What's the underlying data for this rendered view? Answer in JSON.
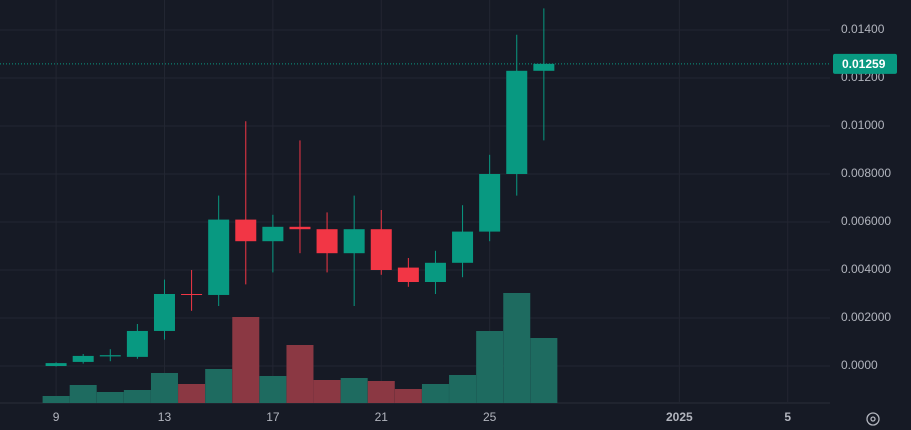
{
  "chart_data": {
    "type": "candlestick",
    "x": [
      9,
      10,
      11,
      12,
      13,
      14,
      15,
      16,
      17,
      18,
      19,
      20,
      21,
      22,
      23,
      24,
      25,
      26,
      27
    ],
    "open": [
      0.0,
      0.00017,
      0.0004,
      0.00038,
      0.00146,
      0.003,
      0.00296,
      0.0061,
      0.0052,
      0.0058,
      0.0057,
      0.0047,
      0.0057,
      0.0041,
      0.0035,
      0.0043,
      0.0056,
      0.008,
      0.0123
    ],
    "high": [
      0.00015,
      0.0005,
      0.0007,
      0.00175,
      0.0036,
      0.004,
      0.0071,
      0.0102,
      0.0063,
      0.0094,
      0.0064,
      0.0071,
      0.0065,
      0.0045,
      0.0048,
      0.0067,
      0.0088,
      0.0138,
      0.0149
    ],
    "low": [
      -2e-05,
      0.0001,
      0.0002,
      0.0003,
      0.0011,
      0.0023,
      0.0025,
      0.0034,
      0.0039,
      0.0047,
      0.0039,
      0.0025,
      0.0038,
      0.0033,
      0.003,
      0.0037,
      0.0052,
      0.0071,
      0.0094
    ],
    "close": [
      0.00012,
      0.00042,
      0.00045,
      0.00146,
      0.003,
      0.00298,
      0.0061,
      0.0052,
      0.0058,
      0.0057,
      0.0047,
      0.0057,
      0.004,
      0.0035,
      0.0043,
      0.0056,
      0.008,
      0.0123,
      0.01259
    ],
    "volumes": [
      7,
      18,
      11,
      13,
      30,
      19,
      34,
      86,
      27,
      58,
      23,
      25,
      22,
      14,
      19,
      28,
      72,
      110,
      65
    ],
    "volume_lim": [
      0,
      400
    ],
    "up_color": "#089981",
    "down_color": "#f23645",
    "volume_up_color": "#1e6b60",
    "volume_down_color": "#8b3843",
    "last_price": 0.01259,
    "ylim": [
      -0.0015,
      0.01525
    ],
    "yticks": [
      {
        "value": 0.0,
        "label": "0.0000"
      },
      {
        "value": 0.002,
        "label": "0.002000"
      },
      {
        "value": 0.004,
        "label": "0.004000"
      },
      {
        "value": 0.006,
        "label": "0.006000"
      },
      {
        "value": 0.008,
        "label": "0.008000"
      },
      {
        "value": 0.01,
        "label": "0.01000"
      },
      {
        "value": 0.012,
        "label": "0.01200"
      },
      {
        "value": 0.014,
        "label": "0.01400"
      }
    ],
    "xlim": [
      6.93,
      37.56
    ],
    "xticks": [
      9,
      13,
      17,
      21,
      25,
      {
        "value": 32,
        "label": "2025"
      },
      {
        "value": 36,
        "label": "5"
      }
    ],
    "grid": true
  }
}
